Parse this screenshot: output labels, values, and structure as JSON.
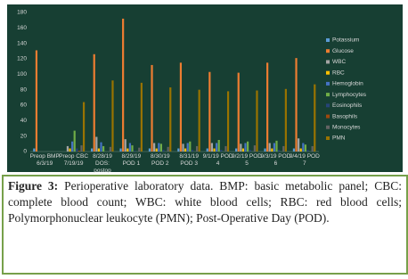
{
  "chart_data": {
    "type": "bar",
    "categories": [
      "Preop BMP 6/3/19",
      "Preop CBC 7/19/19",
      "8/28/19 DOS: postop",
      "8/29/19 POD 1",
      "8/30/19 POD 2",
      "8/31/19 POD 3",
      "9/1/19 POD 4",
      "9/2/19 POD 5",
      "9/3/19 POD 6",
      "9/4/19 POD 7"
    ],
    "series": [
      {
        "name": "Potassium",
        "color": "#5b9bd5",
        "values": [
          4,
          null,
          4,
          4,
          4,
          4,
          4,
          4,
          4,
          4
        ]
      },
      {
        "name": "Glucose",
        "color": "#ed7d31",
        "values": [
          131,
          null,
          126,
          172,
          112,
          115,
          103,
          102,
          115,
          121
        ]
      },
      {
        "name": "WBC",
        "color": "#a5a5a5",
        "values": [
          null,
          7,
          19,
          16,
          11,
          10,
          11,
          10,
          11,
          17
        ]
      },
      {
        "name": "RBC",
        "color": "#ffc000",
        "values": [
          null,
          4,
          4,
          4,
          4,
          4,
          4,
          4,
          4,
          4
        ]
      },
      {
        "name": "Hemoglobin",
        "color": "#4472c4",
        "values": [
          null,
          13,
          12,
          11,
          11,
          11,
          11,
          11,
          11,
          11
        ]
      },
      {
        "name": "Lymphocytes",
        "color": "#70ad47",
        "values": [
          null,
          27,
          7,
          8,
          10,
          13,
          15,
          13,
          14,
          9
        ]
      },
      {
        "name": "Eosinophils",
        "color": "#264478",
        "values": [
          null,
          4,
          0,
          1,
          2,
          2,
          2,
          2,
          2,
          2
        ]
      },
      {
        "name": "Basophils",
        "color": "#9e480e",
        "values": [
          null,
          1,
          0,
          0,
          0,
          0,
          0,
          0,
          0,
          0
        ]
      },
      {
        "name": "Monocytes",
        "color": "#636363",
        "values": [
          null,
          8,
          6,
          5,
          6,
          7,
          7,
          8,
          7,
          7
        ]
      },
      {
        "name": "PMN",
        "color": "#997300",
        "values": [
          null,
          64,
          92,
          89,
          83,
          80,
          78,
          79,
          81,
          87
        ]
      }
    ],
    "ylim": [
      0,
      180
    ],
    "yticks": [
      0,
      20,
      40,
      60,
      80,
      100,
      120,
      140,
      160,
      180
    ],
    "grid": false,
    "legend": "right"
  },
  "caption": {
    "label": "Figure 3:",
    "text": "Perioperative laboratory data. BMP: basic metabolic panel; CBC: complete blood count; WBC: white blood cells; RBC: red blood cells; Polymorphonuclear leukocyte (PMN); Post-Operative Day (POD)."
  }
}
